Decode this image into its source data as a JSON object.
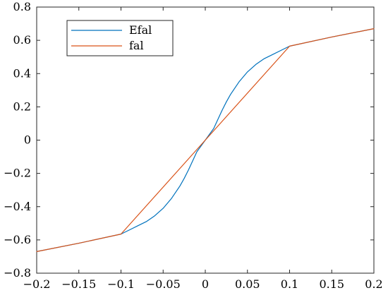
{
  "chart_data": {
    "type": "line",
    "title": "",
    "xlabel": "",
    "ylabel": "",
    "xlim": [
      -0.2,
      0.2
    ],
    "ylim": [
      -0.8,
      0.8
    ],
    "x_ticks": [
      -0.2,
      -0.15,
      -0.1,
      -0.05,
      0,
      0.05,
      0.1,
      0.15,
      0.2
    ],
    "x_tick_labels": [
      "−0.2",
      "−0.15",
      "−0.1",
      "−0.05",
      "0",
      "0.05",
      "0.1",
      "0.15",
      "0.2"
    ],
    "y_ticks": [
      0.8,
      0.6,
      0.4,
      0.2,
      0,
      -0.2,
      -0.4,
      -0.6,
      -0.8
    ],
    "y_tick_labels": [
      "0.8",
      "0.6",
      "0.4",
      "0.2",
      "0",
      "−0.2",
      "−0.4",
      "−0.6",
      "−0.8"
    ],
    "grid": false,
    "legend_position": "top-left",
    "series": [
      {
        "name": "Efal",
        "color": "#0072BD",
        "x": [
          -0.2,
          -0.15,
          -0.1,
          -0.09,
          -0.08,
          -0.07,
          -0.06,
          -0.05,
          -0.04,
          -0.03,
          -0.025,
          -0.02,
          -0.015,
          -0.01,
          -0.005,
          0,
          0.005,
          0.01,
          0.015,
          0.02,
          0.025,
          0.03,
          0.04,
          0.05,
          0.06,
          0.07,
          0.08,
          0.09,
          0.1,
          0.15,
          0.2
        ],
        "y": [
          -0.67,
          -0.62,
          -0.565,
          -0.54,
          -0.515,
          -0.49,
          -0.455,
          -0.41,
          -0.35,
          -0.275,
          -0.23,
          -0.18,
          -0.125,
          -0.07,
          -0.035,
          0,
          0.035,
          0.07,
          0.125,
          0.18,
          0.23,
          0.275,
          0.35,
          0.41,
          0.455,
          0.49,
          0.515,
          0.54,
          0.565,
          0.62,
          0.67
        ]
      },
      {
        "name": "fal",
        "color": "#D95319",
        "x": [
          -0.2,
          -0.15,
          -0.1,
          0,
          0.1,
          0.15,
          0.2
        ],
        "y": [
          -0.67,
          -0.62,
          -0.565,
          0,
          0.565,
          0.62,
          0.67
        ]
      }
    ]
  }
}
